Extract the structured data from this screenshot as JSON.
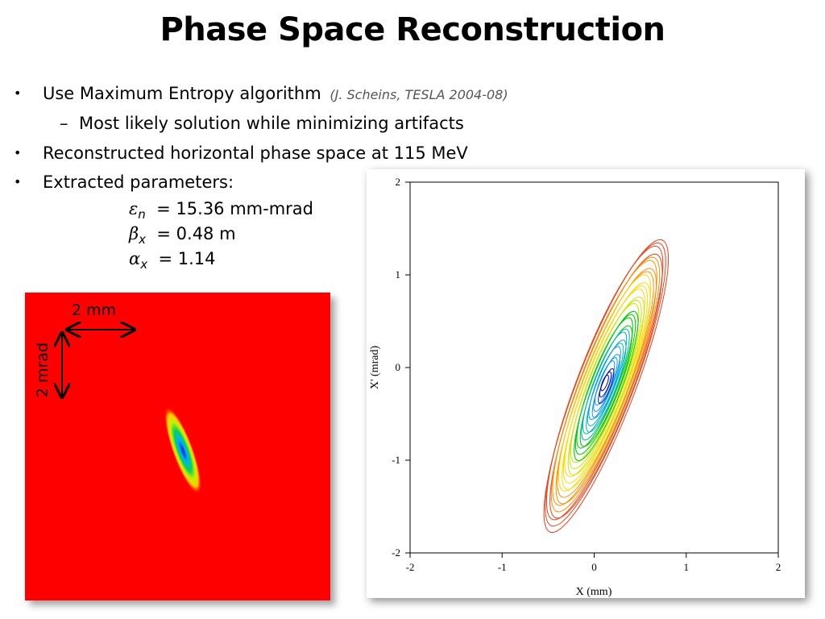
{
  "slide": {
    "title": "Phase Space Reconstruction",
    "bullets": [
      {
        "text": "Use Maximum Entropy algorithm",
        "cite": "(J. Scheins, TESLA 2004-08)"
      },
      {
        "text": "Most likely solution while minimizing artifacts"
      },
      {
        "text": "Reconstructed horizontal phase space at 115 MeV"
      },
      {
        "text": "Extracted parameters:"
      }
    ],
    "bullet_marker": "•",
    "sub_marker": "–",
    "params": [
      {
        "symbol": "ε",
        "subscript": "n",
        "value": "= 15.36 mm-mrad"
      },
      {
        "symbol": "β",
        "subscript": "x",
        "value": "= 0.48 m"
      },
      {
        "symbol": "α",
        "subscript": "x",
        "value": "= 1.14"
      }
    ]
  },
  "left_image": {
    "scale_x_label": "2 mm",
    "scale_y_label": "2 mrad",
    "background_color": "#ff0000"
  },
  "chart_data": {
    "type": "contour",
    "xlabel": "X (mm)",
    "ylabel": "X' (mrad)",
    "xlim": [
      -2,
      2
    ],
    "ylim": [
      -2,
      2
    ],
    "xticks": [
      "-2",
      "-1",
      "0",
      "1",
      "2"
    ],
    "yticks": [
      "-2",
      "-1",
      "0",
      "1",
      "2"
    ],
    "grid": false,
    "colors": [
      "#e8401a",
      "#ff8c00",
      "#ffd700",
      "#c8e600",
      "#00c800",
      "#00b4b4",
      "#0096ff",
      "#0000c8"
    ]
  }
}
